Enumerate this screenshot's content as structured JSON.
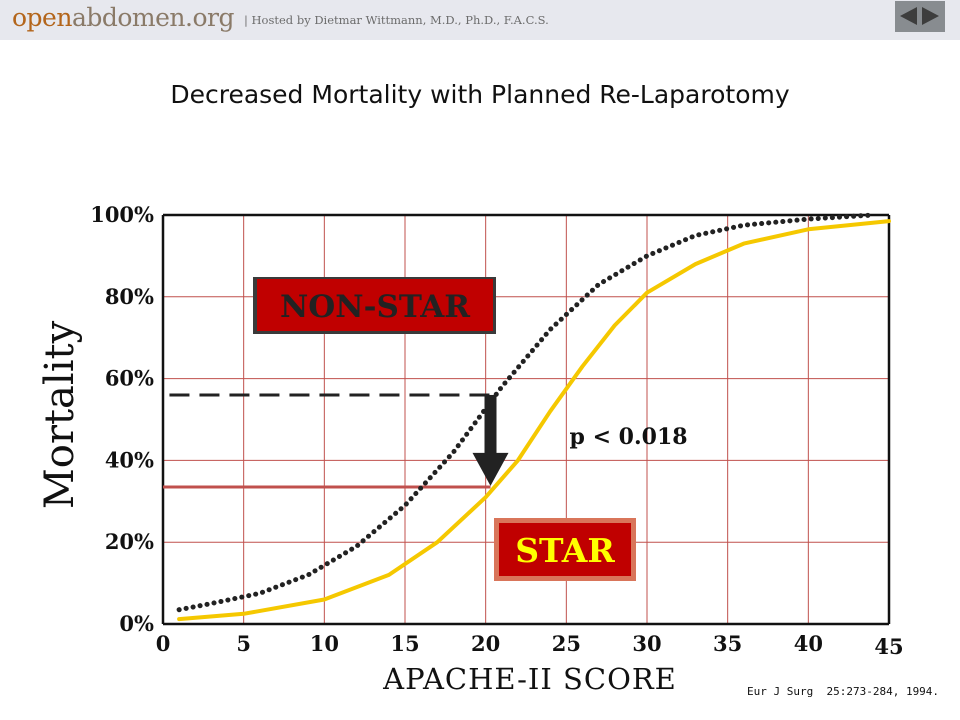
{
  "header": {
    "site_name_open": "open",
    "site_name_rest": "abdomen.org",
    "hosted_by": "| Hosted by Dietmar Wittmann, M.D., Ph.D., F.A.C.S."
  },
  "slide_title": "Decreased Mortality with Planned Re-Laparotomy",
  "citation": "Eur J Surg  25:273-284, 1994.",
  "chart_data": {
    "type": "line",
    "xlabel": "APACHE-II SCORE",
    "ylabel": "Mortality",
    "xlim": [
      0,
      45
    ],
    "ylim": [
      0,
      100
    ],
    "x_ticks": [
      0,
      5,
      10,
      15,
      20,
      25,
      30,
      35,
      40,
      45
    ],
    "y_ticks": [
      0,
      20,
      40,
      60,
      80,
      100
    ],
    "y_tick_labels": [
      "0%",
      "20%",
      "40%",
      "60%",
      "80%",
      "100%"
    ],
    "grid": true,
    "series": [
      {
        "name": "NON-STAR",
        "style": "dotted",
        "color": "#222222",
        "points": [
          [
            1,
            3.5
          ],
          [
            3,
            5
          ],
          [
            6,
            7.5
          ],
          [
            9,
            12
          ],
          [
            12,
            19
          ],
          [
            15,
            29
          ],
          [
            18,
            42
          ],
          [
            21,
            58
          ],
          [
            24,
            72
          ],
          [
            27,
            83
          ],
          [
            30,
            90
          ],
          [
            33,
            95
          ],
          [
            36,
            97.5
          ],
          [
            40,
            99
          ],
          [
            44,
            100
          ]
        ]
      },
      {
        "name": "STAR",
        "style": "solid",
        "color": "#f5c800",
        "points": [
          [
            1,
            1.2
          ],
          [
            5,
            2.5
          ],
          [
            10,
            6
          ],
          [
            14,
            12
          ],
          [
            17,
            20
          ],
          [
            20,
            31
          ],
          [
            22,
            40
          ],
          [
            24,
            52
          ],
          [
            26,
            63
          ],
          [
            28,
            73
          ],
          [
            30,
            81
          ],
          [
            33,
            88
          ],
          [
            36,
            93
          ],
          [
            40,
            96.5
          ],
          [
            45,
            98.5
          ]
        ]
      }
    ],
    "annotations": {
      "dashed_line": {
        "x_from": 0.4,
        "x_to": 20.3,
        "y": 56,
        "color": "#222222"
      },
      "solid_line": {
        "x_from": 0,
        "x_to": 20.3,
        "y": 33.5,
        "color": "#c0504d"
      },
      "arrow": {
        "x": 20.3,
        "y_from": 56,
        "y_to": 35
      },
      "p_value_text": "p < 0.018",
      "p_value_pos": {
        "x": 25.2,
        "y": 46
      },
      "non_star_label": "NON-STAR",
      "star_label": "STAR"
    },
    "colors": {
      "grid": "#c0504d",
      "non_star_box_fill": "#c00000",
      "non_star_text": "#222222",
      "star_box_fill": "#c00000",
      "star_box_border": "#d9755a",
      "star_text": "#ffff00"
    }
  }
}
